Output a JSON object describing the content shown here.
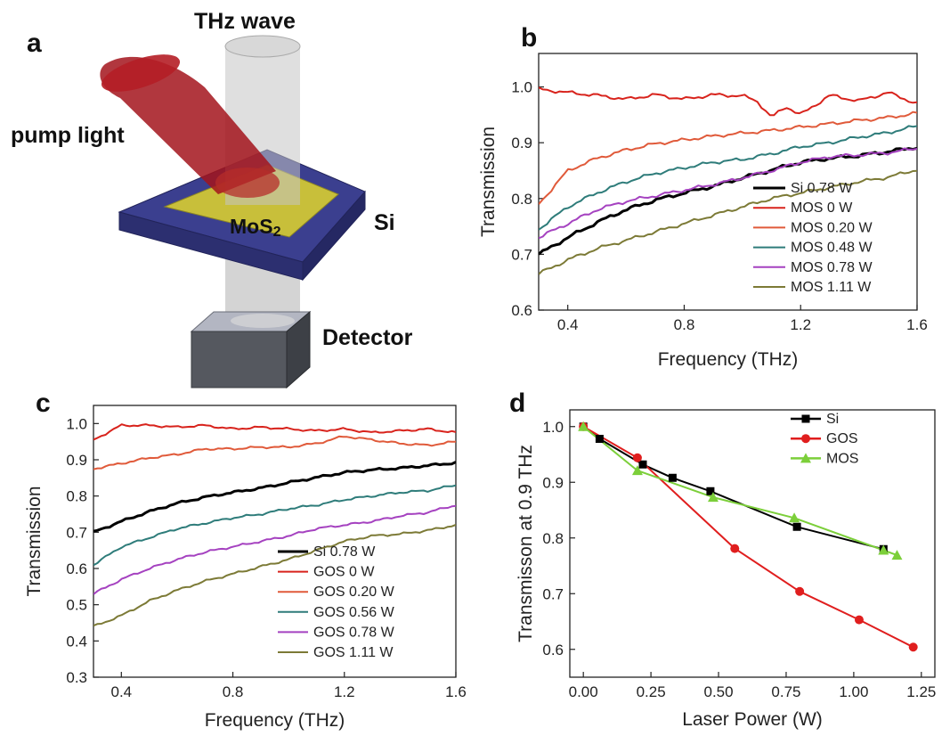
{
  "panel_a": {
    "label": "a",
    "thz_label": "THz wave",
    "pump_label": "pump light",
    "mos2_label": "MoS",
    "mos2_sub": "2",
    "si_label": "Si",
    "detector_label": "Detector",
    "colors": {
      "pump": "#a3141c",
      "substrate": "#3b3f8f",
      "film": "#c8bf3a",
      "beam": "#c8c8c8",
      "detector": "#55585f"
    }
  },
  "chart_data": [
    {
      "id": "b",
      "panel_label": "b",
      "type": "line",
      "xlabel": "Frequency (THz)",
      "ylabel": "Transmission",
      "xlim": [
        0.3,
        1.6
      ],
      "ylim": [
        0.6,
        1.06
      ],
      "xticks": [
        "0.4",
        "0.8",
        "1.2",
        "1.6"
      ],
      "yticks": [
        "0.6",
        "0.7",
        "0.8",
        "0.9",
        "1.0"
      ],
      "legend_position": "bottom-right",
      "series": [
        {
          "name": "Si 0.78 W",
          "color": "#000000",
          "width": 3,
          "x": [
            0.3,
            0.4,
            0.5,
            0.6,
            0.7,
            0.8,
            0.9,
            1.0,
            1.1,
            1.2,
            1.3,
            1.4,
            1.5,
            1.6
          ],
          "y": [
            0.7,
            0.73,
            0.757,
            0.78,
            0.797,
            0.81,
            0.822,
            0.837,
            0.851,
            0.865,
            0.872,
            0.877,
            0.884,
            0.892
          ]
        },
        {
          "name": "MOS 0 W",
          "color": "#d8231c",
          "width": 2,
          "x": [
            0.3,
            0.4,
            0.5,
            0.6,
            0.7,
            0.8,
            0.9,
            1.0,
            1.05,
            1.1,
            1.15,
            1.2,
            1.3,
            1.4,
            1.5,
            1.6
          ],
          "y": [
            0.996,
            0.99,
            0.985,
            0.978,
            0.986,
            0.978,
            0.986,
            0.984,
            0.975,
            0.945,
            0.965,
            0.95,
            0.985,
            0.975,
            0.99,
            0.97
          ]
        },
        {
          "name": "MOS 0.20 W",
          "color": "#e05a3a",
          "width": 2,
          "x": [
            0.3,
            0.4,
            0.5,
            0.6,
            0.7,
            0.8,
            0.9,
            1.0,
            1.1,
            1.2,
            1.3,
            1.4,
            1.5,
            1.6
          ],
          "y": [
            0.79,
            0.85,
            0.872,
            0.887,
            0.898,
            0.905,
            0.912,
            0.917,
            0.922,
            0.928,
            0.934,
            0.94,
            0.945,
            0.953
          ]
        },
        {
          "name": "MOS 0.48 W",
          "color": "#2e7c7a",
          "width": 2,
          "x": [
            0.3,
            0.4,
            0.5,
            0.6,
            0.7,
            0.8,
            0.9,
            1.0,
            1.1,
            1.2,
            1.3,
            1.4,
            1.5,
            1.6
          ],
          "y": [
            0.745,
            0.785,
            0.81,
            0.83,
            0.845,
            0.855,
            0.865,
            0.87,
            0.88,
            0.893,
            0.9,
            0.91,
            0.918,
            0.93
          ]
        },
        {
          "name": "MOS 0.78 W",
          "color": "#a542c0",
          "width": 2,
          "x": [
            0.3,
            0.4,
            0.5,
            0.6,
            0.7,
            0.8,
            0.9,
            1.0,
            1.1,
            1.2,
            1.3,
            1.4,
            1.5,
            1.6
          ],
          "y": [
            0.73,
            0.755,
            0.78,
            0.795,
            0.805,
            0.815,
            0.825,
            0.837,
            0.85,
            0.865,
            0.875,
            0.878,
            0.882,
            0.89
          ]
        },
        {
          "name": "MOS 1.11 W",
          "color": "#7c7a36",
          "width": 2,
          "x": [
            0.3,
            0.4,
            0.5,
            0.6,
            0.7,
            0.8,
            0.9,
            1.0,
            1.1,
            1.2,
            1.3,
            1.4,
            1.5,
            1.6
          ],
          "y": [
            0.665,
            0.69,
            0.71,
            0.725,
            0.74,
            0.755,
            0.77,
            0.785,
            0.8,
            0.81,
            0.82,
            0.83,
            0.838,
            0.852
          ]
        }
      ]
    },
    {
      "id": "c",
      "panel_label": "c",
      "type": "line",
      "xlabel": "Frequency (THz)",
      "ylabel": "Transmission",
      "xlim": [
        0.3,
        1.6
      ],
      "ylim": [
        0.3,
        1.05
      ],
      "xticks": [
        "0.4",
        "0.8",
        "1.2",
        "1.6"
      ],
      "yticks": [
        "0.3",
        "0.4",
        "0.5",
        "0.6",
        "0.7",
        "0.8",
        "0.9",
        "1.0"
      ],
      "legend_position": "bottom-right",
      "series": [
        {
          "name": "Si 0.78 W",
          "color": "#000000",
          "width": 3,
          "x": [
            0.3,
            0.4,
            0.5,
            0.6,
            0.7,
            0.8,
            0.9,
            1.0,
            1.1,
            1.2,
            1.3,
            1.4,
            1.5,
            1.6
          ],
          "y": [
            0.7,
            0.73,
            0.757,
            0.78,
            0.797,
            0.81,
            0.822,
            0.837,
            0.851,
            0.865,
            0.872,
            0.877,
            0.884,
            0.892
          ]
        },
        {
          "name": "GOS 0 W",
          "color": "#d8231c",
          "width": 2,
          "x": [
            0.3,
            0.4,
            0.5,
            0.6,
            0.7,
            0.8,
            0.9,
            1.0,
            1.1,
            1.2,
            1.3,
            1.4,
            1.5,
            1.6
          ],
          "y": [
            0.955,
            0.995,
            0.995,
            0.99,
            0.995,
            0.985,
            0.99,
            0.985,
            0.98,
            0.985,
            0.975,
            0.98,
            0.985,
            0.975
          ]
        },
        {
          "name": "GOS 0.20 W",
          "color": "#e05a3a",
          "width": 2,
          "x": [
            0.3,
            0.4,
            0.5,
            0.6,
            0.7,
            0.8,
            0.9,
            1.0,
            1.1,
            1.2,
            1.3,
            1.4,
            1.5,
            1.6
          ],
          "y": [
            0.875,
            0.89,
            0.905,
            0.915,
            0.93,
            0.93,
            0.935,
            0.935,
            0.945,
            0.965,
            0.955,
            0.945,
            0.94,
            0.95
          ]
        },
        {
          "name": "GOS 0.56 W",
          "color": "#2e7c7a",
          "width": 2,
          "x": [
            0.3,
            0.4,
            0.5,
            0.6,
            0.7,
            0.8,
            0.9,
            1.0,
            1.1,
            1.2,
            1.3,
            1.4,
            1.5,
            1.6
          ],
          "y": [
            0.61,
            0.66,
            0.685,
            0.71,
            0.725,
            0.74,
            0.75,
            0.765,
            0.775,
            0.79,
            0.8,
            0.81,
            0.815,
            0.83
          ]
        },
        {
          "name": "GOS 0.78 W",
          "color": "#a542c0",
          "width": 2,
          "x": [
            0.3,
            0.4,
            0.5,
            0.6,
            0.7,
            0.8,
            0.9,
            1.0,
            1.1,
            1.2,
            1.3,
            1.4,
            1.5,
            1.6
          ],
          "y": [
            0.53,
            0.57,
            0.6,
            0.625,
            0.645,
            0.66,
            0.675,
            0.69,
            0.71,
            0.72,
            0.73,
            0.745,
            0.755,
            0.775
          ]
        },
        {
          "name": "GOS 1.11 W",
          "color": "#7c7a36",
          "width": 2,
          "x": [
            0.3,
            0.4,
            0.5,
            0.6,
            0.7,
            0.8,
            0.9,
            1.0,
            1.1,
            1.2,
            1.3,
            1.4,
            1.5,
            1.6
          ],
          "y": [
            0.44,
            0.47,
            0.51,
            0.54,
            0.565,
            0.585,
            0.605,
            0.625,
            0.65,
            0.675,
            0.69,
            0.695,
            0.705,
            0.72
          ]
        }
      ]
    },
    {
      "id": "d",
      "panel_label": "d",
      "type": "line",
      "xlabel": "Laser Power (W)",
      "ylabel": "Transmisson at 0.9 THz",
      "xlim": [
        -0.05,
        1.3
      ],
      "ylim": [
        0.55,
        1.03
      ],
      "xticks": [
        "0.00",
        "0.25",
        "0.50",
        "0.75",
        "1.00",
        "1.25"
      ],
      "yticks": [
        "0.6",
        "0.7",
        "0.8",
        "0.9",
        "1.0"
      ],
      "legend_position": "top-right",
      "series": [
        {
          "name": "Si",
          "color": "#000000",
          "marker": "square",
          "x": [
            0,
            0.06,
            0.22,
            0.33,
            0.47,
            0.79,
            1.11
          ],
          "y": [
            1.0,
            0.978,
            0.932,
            0.908,
            0.884,
            0.82,
            0.78
          ]
        },
        {
          "name": "GOS",
          "color": "#e01e1e",
          "marker": "circle",
          "x": [
            0,
            0.2,
            0.56,
            0.8,
            1.02,
            1.22
          ],
          "y": [
            1.0,
            0.944,
            0.781,
            0.704,
            0.653,
            0.604
          ]
        },
        {
          "name": "MOS",
          "color": "#7ccf3a",
          "marker": "triangle",
          "x": [
            0,
            0.2,
            0.48,
            0.78,
            1.11,
            1.16
          ],
          "y": [
            1.0,
            0.921,
            0.873,
            0.836,
            0.778,
            0.769
          ]
        }
      ]
    }
  ]
}
